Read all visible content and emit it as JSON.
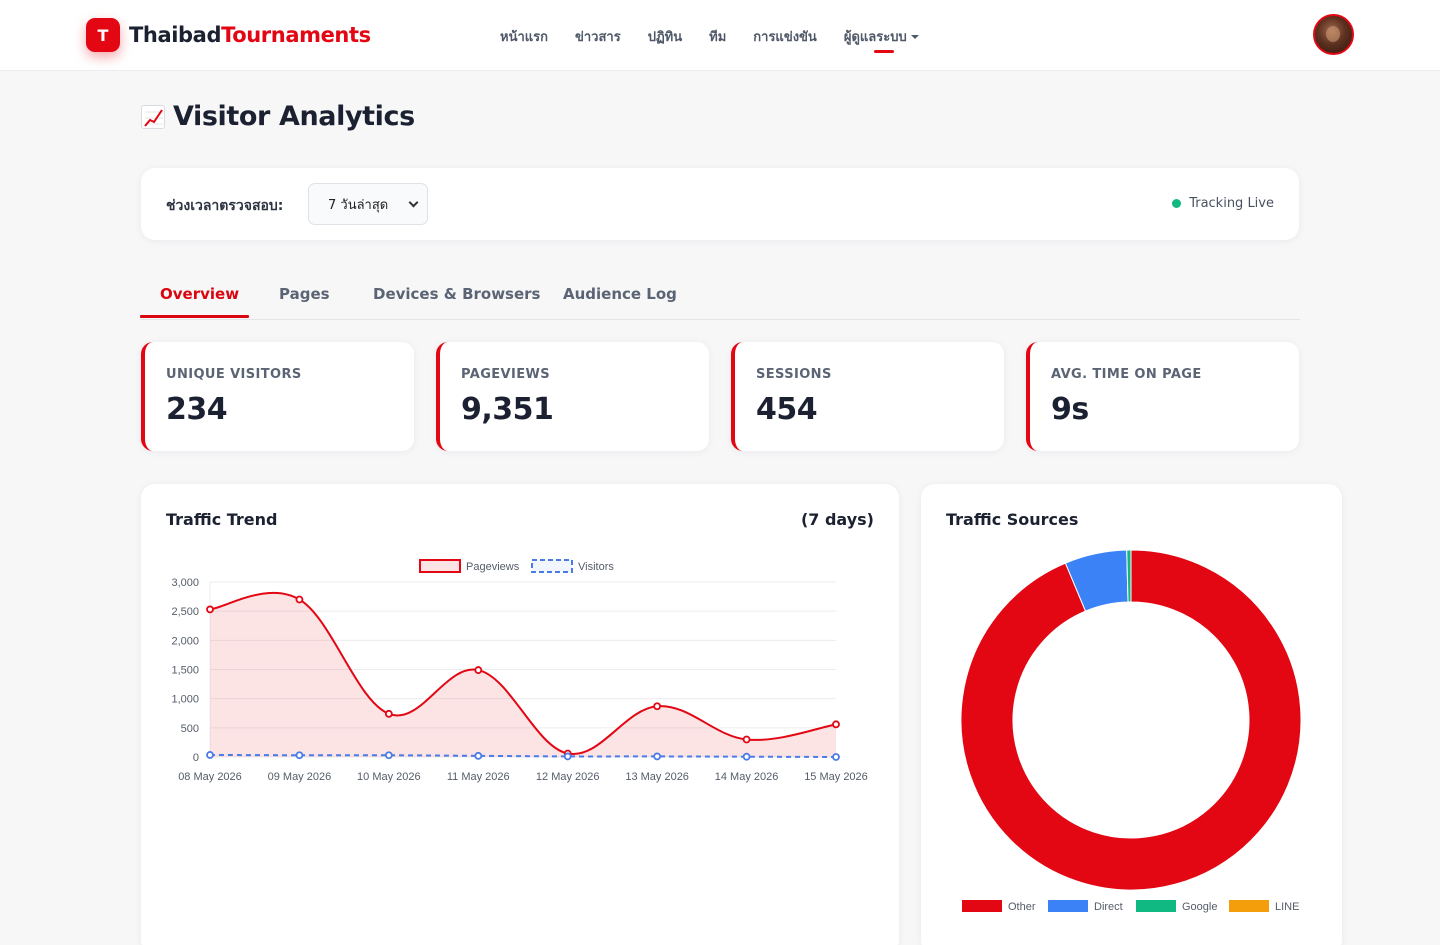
{
  "header": {
    "brand_part1": "Thaibad",
    "brand_part2": "Tournaments",
    "brand_mark": "T",
    "nav": [
      {
        "label": "หน้าแรก"
      },
      {
        "label": "ข่าวสาร"
      },
      {
        "label": "ปฏิทิน"
      },
      {
        "label": "ทีม"
      },
      {
        "label": "การแข่งขัน"
      },
      {
        "label": "ผู้ดูแลระบบ",
        "active": true,
        "has_dropdown": true
      }
    ]
  },
  "page": {
    "title": "Visitor Analytics",
    "title_icon": "chart-increasing-icon"
  },
  "filter": {
    "label": "ช่วงเวลาตรวจสอบ:",
    "selected": "7 วันล่าสุด",
    "status": "Tracking Live",
    "status_color": "#10b981"
  },
  "tabs": [
    {
      "label": "Overview",
      "active": true
    },
    {
      "label": "Pages"
    },
    {
      "label": "Devices & Browsers"
    },
    {
      "label": "Audience Log"
    }
  ],
  "stats": [
    {
      "label": "UNIQUE VISITORS",
      "value": "234"
    },
    {
      "label": "PAGEVIEWS",
      "value": "9,351"
    },
    {
      "label": "SESSIONS",
      "value": "454"
    },
    {
      "label": "AVG. TIME ON PAGE",
      "value": "9s"
    }
  ],
  "colors": {
    "accent": "#e30613",
    "visitors": "#4a7be8"
  },
  "chart_data": [
    {
      "type": "line",
      "title": "Traffic Trend",
      "subtitle": "(7 days)",
      "x": [
        "08 May 2026",
        "09 May 2026",
        "10 May 2026",
        "11 May 2026",
        "12 May 2026",
        "13 May 2026",
        "14 May 2026",
        "15 May 2026"
      ],
      "y_ticks": [
        "0",
        "500",
        "1,000",
        "1,500",
        "2,000",
        "2,500",
        "3,000"
      ],
      "ylim": [
        0,
        3000
      ],
      "grid": true,
      "legend_position": "top",
      "series": [
        {
          "name": "Pageviews",
          "values": [
            2530,
            2700,
            740,
            1490,
            60,
            870,
            300,
            560
          ],
          "color": "#e30613",
          "fill": true
        },
        {
          "name": "Visitors",
          "values": [
            35,
            30,
            30,
            20,
            10,
            10,
            5,
            0
          ],
          "color": "#4a7be8",
          "dashed": true
        }
      ]
    },
    {
      "type": "pie",
      "title": "Traffic Sources",
      "legend_position": "bottom",
      "labels": [
        "Other",
        "Direct",
        "Google",
        "LINE"
      ],
      "values": [
        93.7,
        5.9,
        0.4,
        0.0
      ],
      "colors": [
        "#e30613",
        "#3b82f6",
        "#10b981",
        "#f59e0b"
      ]
    }
  ]
}
